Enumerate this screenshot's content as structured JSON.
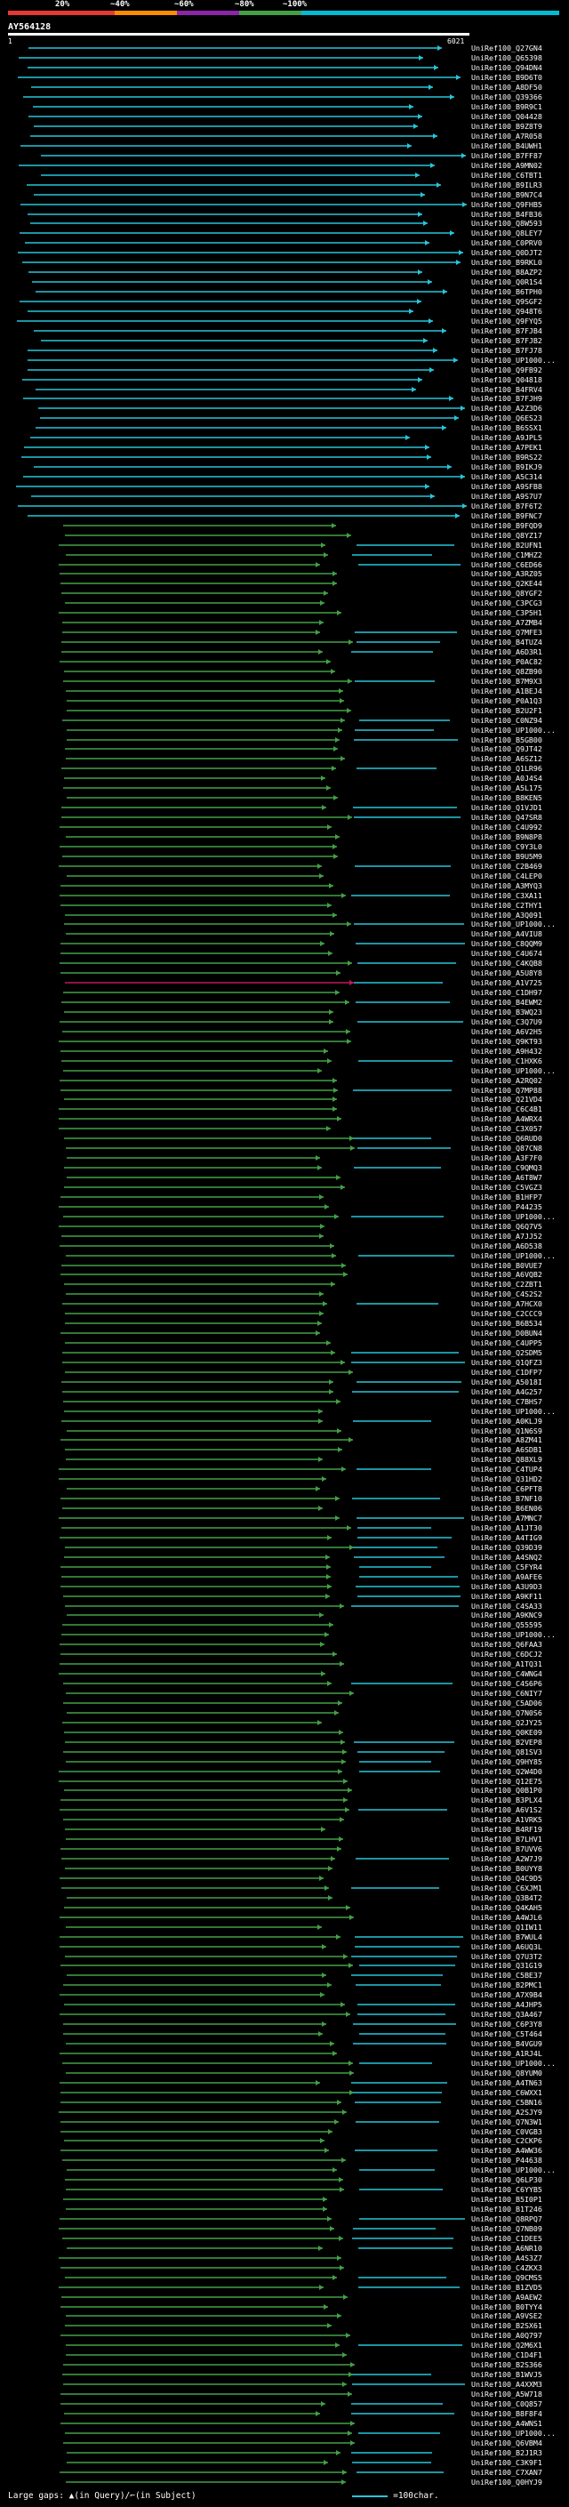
{
  "scale": {
    "labels": [
      "20%",
      "~40%",
      "~60%",
      "~80%",
      "~100%"
    ],
    "colors": [
      "#e53935",
      "#fb8c00",
      "#8e24aa",
      "#43a047",
      "#00bcd4"
    ]
  },
  "query": {
    "name": "AY564128",
    "start": "1",
    "end": "6021"
  },
  "colors": {
    "cyan": "#26c6da",
    "green": "#43a047",
    "magenta": "#c2185b",
    "white": "#ffffff"
  },
  "hits": [
    "UniRef100_Q27GN4",
    "UniRef100_Q65398",
    "UniRef100_Q94DN4",
    "UniRef100_B9D6T0",
    "UniRef100_A8DF50",
    "UniRef100_Q39366",
    "UniRef100_B9R9C1",
    "UniRef100_Q04428",
    "UniRef100_B9Z8T9",
    "UniRef100_A7R058",
    "UniRef100_B4UWH1",
    "UniRef100_B7FF87",
    "UniRef100_A9MN02",
    "UniRef100_C6TBT1",
    "UniRef100_B9ILR3",
    "UniRef100_B9N7C4",
    "UniRef100_Q9FHB5",
    "UniRef100_B4FB36",
    "UniRef100_Q8W593",
    "UniRef100_Q8LEY7",
    "UniRef100_C0PRV0",
    "UniRef100_Q0DJT2",
    "UniRef100_B9RKL0",
    "UniRef100_B8AZP2",
    "UniRef100_Q0R1S4",
    "UniRef100_B6TPH0",
    "UniRef100_Q9SGF2",
    "UniRef100_Q948T6",
    "UniRef100_Q9FYQ5",
    "UniRef100_B7FJB4",
    "UniRef100_B7FJB2",
    "UniRef100_B7FJ78",
    "UniRef100_UP1000...",
    "UniRef100_Q9FB92",
    "UniRef100_Q04818",
    "UniRef100_B4FRV4",
    "UniRef100_B7FJH9",
    "UniRef100_A2Z3D6",
    "UniRef100_Q6ES23",
    "UniRef100_B6SSX1",
    "UniRef100_A9JPL5",
    "UniRef100_A7PEK1",
    "UniRef100_B9RS22",
    "UniRef100_B9IKJ9",
    "UniRef100_A5C314",
    "UniRef100_A9SFB8",
    "UniRef100_A9S7U7",
    "UniRef100_B7F6T2",
    "UniRef100_B9FNC7",
    "UniRef100_B9FQD9",
    "UniRef100_Q8YZ17",
    "UniRef100_B2UFN1",
    "UniRef100_C1MHZ2",
    "UniRef100_C6ED66",
    "UniRef100_A3RZ05",
    "UniRef100_Q2KE44",
    "UniRef100_Q8YGF2",
    "UniRef100_C3PCG3",
    "UniRef100_C3P5H1",
    "UniRef100_A7ZMB4",
    "UniRef100_Q7MFE3",
    "UniRef100_B4TUZ4",
    "UniRef100_A6D3R1",
    "UniRef100_P0AC82",
    "UniRef100_Q8ZB90",
    "UniRef100_B7M9X3",
    "UniRef100_A1BEJ4",
    "UniRef100_P0A1Q3",
    "UniRef100_B2U2F1",
    "UniRef100_C0NZ94",
    "UniRef100_UP1000...",
    "UniRef100_B5GB00",
    "UniRef100_Q9JT42",
    "UniRef100_A6SZ12",
    "UniRef100_Q1LR96",
    "UniRef100_A0J4S4",
    "UniRef100_A5L175",
    "UniRef100_B8KEN5",
    "UniRef100_Q1VJD1",
    "UniRef100_Q47SR8",
    "UniRef100_C4U992",
    "UniRef100_B9N8P8",
    "UniRef100_C9Y3L0",
    "UniRef100_B9U5M9",
    "UniRef100_C2B469",
    "UniRef100_C4LEP0",
    "UniRef100_A3MYQ3",
    "UniRef100_C3XA11",
    "UniRef100_C2THY1",
    "UniRef100_A3Q091",
    "UniRef100_UP1000...",
    "UniRef100_A4VIU8",
    "UniRef100_C8QQM9",
    "UniRef100_C4U674",
    "UniRef100_C4KQB8",
    "UniRef100_A5U8Y8",
    "UniRef100_A1V725",
    "UniRef100_C1DH97",
    "UniRef100_B4EWM2",
    "UniRef100_B3WQ23",
    "UniRef100_C3Q7U9",
    "UniRef100_A6V2H5",
    "UniRef100_Q9KT93",
    "UniRef100_A9H432",
    "UniRef100_C1HXK6",
    "UniRef100_UP1000...",
    "UniRef100_A2RQ02",
    "UniRef100_Q7MP88",
    "UniRef100_Q21VD4",
    "UniRef100_C6C4B1",
    "UniRef100_A4WRX4",
    "UniRef100_C3X057",
    "UniRef100_Q6RUD0",
    "UniRef100_Q87CN8",
    "UniRef100_A3F7F0",
    "UniRef100_C9QMQ3",
    "UniRef100_A6T8W7",
    "UniRef100_C5VGZ3",
    "UniRef100_B1HFP7",
    "UniRef100_P44235",
    "UniRef100_UP1000...",
    "UniRef100_Q6Q7V5",
    "UniRef100_A7JJ52",
    "UniRef100_A6D538",
    "UniRef100_UP1000...",
    "UniRef100_B0VUE7",
    "UniRef100_A6VQB2",
    "UniRef100_C2ZBT1",
    "UniRef100_C4S2S2",
    "UniRef100_A7HCX0",
    "UniRef100_C2CCC9",
    "UniRef100_B6B534",
    "UniRef100_D0BUN4",
    "UniRef100_C4UPP5",
    "UniRef100_Q2SDM5",
    "UniRef100_Q1QFZ3",
    "UniRef100_C1DFP7",
    "UniRef100_A5018I",
    "UniRef100_A4G257",
    "UniRef100_C7BHS7",
    "UniRef100_UP1000...",
    "UniRef100_A0KLJ9",
    "UniRef100_Q1N6S9",
    "UniRef100_A8ZM41",
    "UniRef100_A6SDB1",
    "UniRef100_Q88XL9",
    "UniRef100_C4TUP4",
    "UniRef100_Q31HD2",
    "UniRef100_C6PFT8",
    "UniRef100_B7NF10",
    "UniRef100_B6EN06",
    "UniRef100_A7MNC7",
    "UniRef100_A1JT30",
    "UniRef100_A4TIG9",
    "UniRef100_Q39D39",
    "UniRef100_A4SNQ2",
    "UniRef100_C5FYR4",
    "UniRef100_A9AFE6",
    "UniRef100_A3U9D3",
    "UniRef100_A9KF11",
    "UniRef100_C4SA33",
    "UniRef100_A9KNC9",
    "UniRef100_Q55595",
    "UniRef100_UP1000...",
    "UniRef100_Q6FAA3",
    "UniRef100_C6DCJ2",
    "UniRef100_A1TQ31",
    "UniRef100_C4WNG4",
    "UniRef100_C4S6P6",
    "UniRef100_C6NIY7",
    "UniRef100_C5AD06",
    "UniRef100_Q7N0S6",
    "UniRef100_Q2JY25",
    "UniRef100_Q0KE09",
    "UniRef100_B2VEP8",
    "UniRef100_Q81SV3",
    "UniRef100_Q9HY85",
    "UniRef100_Q2W4D0",
    "UniRef100_Q12E75",
    "UniRef100_Q0B1P0",
    "UniRef100_B3PLX4",
    "UniRef100_A6V1S2",
    "UniRef100_A1VRK5",
    "UniRef100_B4RF19",
    "UniRef100_B7LHV1",
    "UniRef100_B7UVV6",
    "UniRef100_A2W7J9",
    "UniRef100_B0UYY8",
    "UniRef100_Q4C9D5",
    "UniRef100_C6XJM1",
    "UniRef100_Q3B4T2",
    "UniRef100_Q4KAH5",
    "UniRef100_A4WJL6",
    "UniRef100_Q1IW11",
    "UniRef100_B7WUL4",
    "UniRef100_A6UQ3L",
    "UniRef100_Q7U3T2",
    "UniRef100_Q31G19",
    "UniRef100_C5BE37",
    "UniRef100_B2PMC1",
    "UniRef100_A7X9B4",
    "UniRef100_A4JHP5",
    "UniRef100_Q3A467",
    "UniRef100_C6P3Y8",
    "UniRef100_C5T464",
    "UniRef100_B4VGU9",
    "UniRef100_A1RJ4L",
    "UniRef100_UP1000...",
    "UniRef100_Q8YUM0",
    "UniRef100_A4TN63",
    "UniRef100_C6WXX1",
    "UniRef100_C5BN16",
    "UniRef100_A2SJY9",
    "UniRef100_Q7N3W1",
    "UniRef100_C0VGB3",
    "UniRef100_C2CKP6",
    "UniRef100_A4WW36",
    "UniRef100_P44638",
    "UniRef100_UP1000...",
    "UniRef100_Q6LP30",
    "UniRef100_C6YYB5",
    "UniRef100_B5I0P1",
    "UniRef100_B1T246",
    "UniRef100_Q8RPQ7",
    "UniRef100_Q7NB09",
    "UniRef100_C1DEE5",
    "UniRef100_A6NR10",
    "UniRef100_A4S3Z7",
    "UniRef100_C4ZKX3",
    "UniRef100_Q9CMS5",
    "UniRef100_B1ZVD5",
    "UniRef100_A9AEW2",
    "UniRef100_B0TYY4",
    "UniRef100_A9VSE2",
    "UniRef100_B2SX61",
    "UniRef100_A0Q797",
    "UniRef100_Q2M6X1",
    "UniRef100_C1D4F1",
    "UniRef100_B2S366",
    "UniRef100_B1WVJ5",
    "UniRef100_A4XXM3",
    "UniRef100_A5W718",
    "UniRef100_C0Q857",
    "UniRef100_B8F8F4",
    "UniRef100_A4WNS1",
    "UniRef100_UP1000...",
    "UniRef100_Q6VBM4",
    "UniRef100_B2J1R3",
    "UniRef100_C3K9F1",
    "UniRef100_C7XAN7",
    "UniRef100_Q0HYJ9"
  ],
  "legend": {
    "text": "Large gaps: ▲(in Query)/⌐(in Subject)",
    "scale_text": "=100char."
  }
}
